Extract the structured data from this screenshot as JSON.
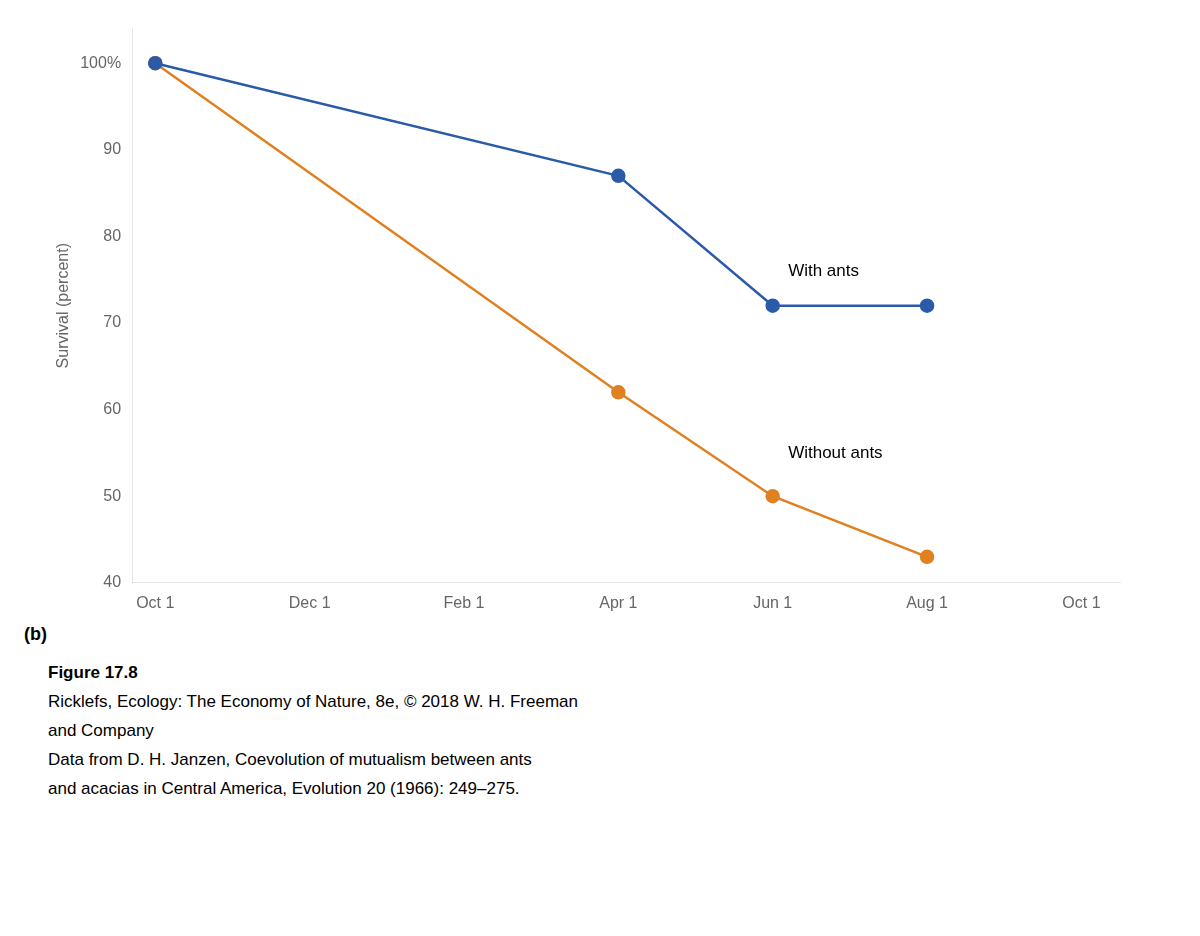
{
  "chart_data": {
    "type": "line",
    "series": [
      {
        "name": "With ants",
        "color": "#2B5BA8",
        "x": [
          0,
          6,
          8,
          10
        ],
        "values": [
          100,
          87,
          72,
          72
        ]
      },
      {
        "name": "Without ants",
        "color": "#E08020",
        "x": [
          0,
          6,
          8,
          10
        ],
        "values": [
          100,
          62,
          50,
          43
        ]
      }
    ],
    "marker": "circle",
    "y_label": "Survival (percent)",
    "xlim": [
      -0.3,
      12.5
    ],
    "xticks": [
      {
        "value": 0,
        "label": "Oct 1"
      },
      {
        "value": 2,
        "label": "Dec 1"
      },
      {
        "value": 4,
        "label": "Feb 1"
      },
      {
        "value": 6,
        "label": "Apr 1"
      },
      {
        "value": 8,
        "label": "Jun 1"
      },
      {
        "value": 10,
        "label": "Aug 1"
      },
      {
        "value": 12,
        "label": "Oct 1"
      }
    ],
    "ylim": [
      40,
      104
    ],
    "yticks": [
      40,
      50,
      60,
      70,
      80,
      90,
      {
        "value": 100,
        "label": "100%"
      }
    ],
    "grid": false,
    "annotations": [
      {
        "text": "With ants",
        "x": 8.2,
        "y": 76
      },
      {
        "text": "Without ants",
        "x": 8.2,
        "y": 55
      }
    ],
    "panel_label": "(b)",
    "caption": [
      "Figure 17.8",
      "Ricklefs, Ecology: The Economy of Nature, 8e, © 2018 W. H. Freeman",
      "and Company",
      "Data from D. H. Janzen, Coevolution of mutualism between ants",
      "and acacias in Central America, Evolution 20 (1966): 249–275."
    ]
  }
}
